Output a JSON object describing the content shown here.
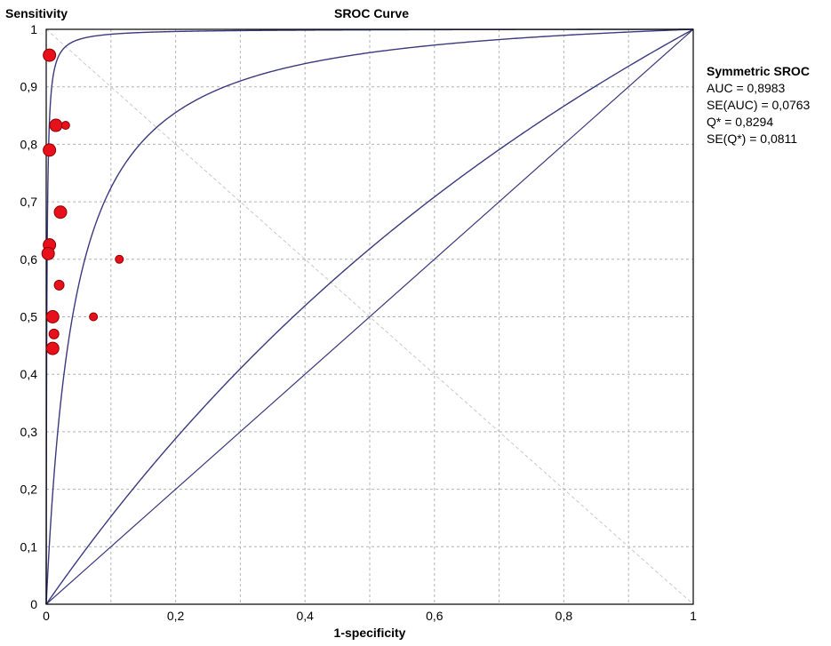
{
  "chart_data": {
    "type": "scatter",
    "title": "SROC Curve",
    "xlabel": "1-specificity",
    "ylabel": "Sensitivity",
    "xlim": [
      0,
      1
    ],
    "ylim": [
      0,
      1
    ],
    "grid": true,
    "x_ticks": [
      "0",
      "0,2",
      "0,4",
      "0,6",
      "0,8",
      "1"
    ],
    "y_ticks": [
      "0",
      "0,1",
      "0,2",
      "0,3",
      "0,4",
      "0,5",
      "0,6",
      "0,7",
      "0,8",
      "0,9",
      "1"
    ],
    "points": [
      {
        "x": 0.005,
        "y": 0.955,
        "size": "large"
      },
      {
        "x": 0.015,
        "y": 0.833,
        "size": "large"
      },
      {
        "x": 0.03,
        "y": 0.833,
        "size": "small"
      },
      {
        "x": 0.005,
        "y": 0.79,
        "size": "large"
      },
      {
        "x": 0.022,
        "y": 0.682,
        "size": "large"
      },
      {
        "x": 0.005,
        "y": 0.625,
        "size": "large"
      },
      {
        "x": 0.003,
        "y": 0.61,
        "size": "large"
      },
      {
        "x": 0.113,
        "y": 0.6,
        "size": "small"
      },
      {
        "x": 0.02,
        "y": 0.555,
        "size": "medium"
      },
      {
        "x": 0.01,
        "y": 0.5,
        "size": "large"
      },
      {
        "x": 0.073,
        "y": 0.5,
        "size": "small"
      },
      {
        "x": 0.012,
        "y": 0.47,
        "size": "medium"
      },
      {
        "x": 0.01,
        "y": 0.445,
        "size": "large"
      }
    ],
    "curves": [
      {
        "kind": "symmetric-sroc",
        "Q": 0.8294
      },
      {
        "kind": "sroc-upper-bound",
        "Q": 0.97
      },
      {
        "kind": "sroc-lower-bound",
        "Q": 0.56
      }
    ],
    "reference_lines": [
      "chance-diagonal",
      "q-star-diagonal"
    ],
    "colors": {
      "points": "#e8111b",
      "point_edge": "#8b0000",
      "curves": "#3a3a80",
      "grid": "#b4b4b4",
      "axes": "#000000"
    },
    "legend": {
      "placement": "right",
      "title": "Symmetric SROC",
      "lines": [
        "AUC = 0,8983",
        "SE(AUC) = 0,0763",
        "Q* = 0,8294",
        "SE(Q*) = 0,0811"
      ]
    }
  }
}
